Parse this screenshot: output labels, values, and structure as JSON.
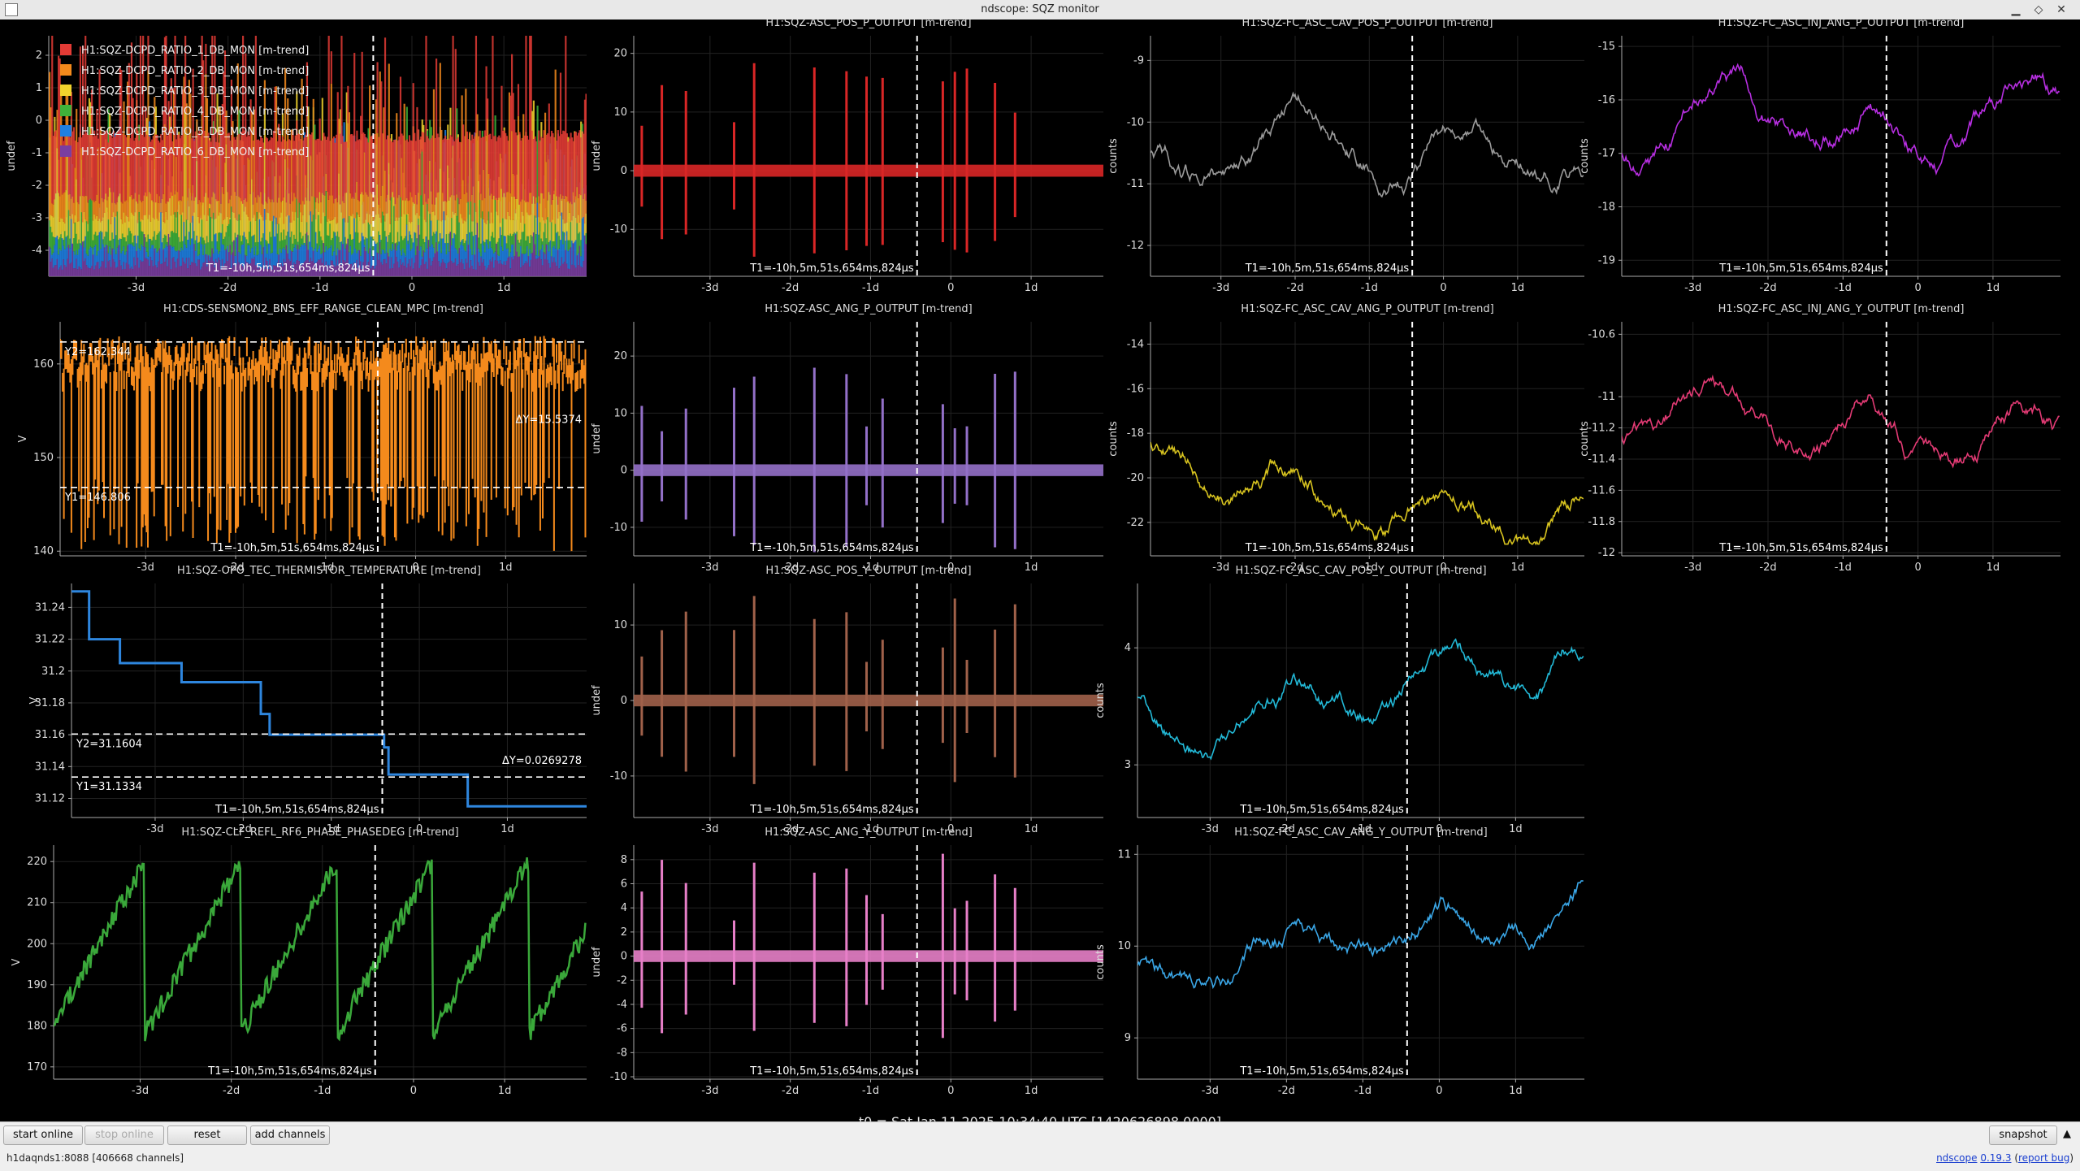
{
  "window": {
    "title": "ndscope: SQZ monitor"
  },
  "cursor_label": "T1=-10h,5m,51s,654ms,824μs",
  "x_tick_labels": [
    "-3d",
    "-2d",
    "-1d",
    "0",
    "1d"
  ],
  "t0_text": "t0 = Sat Jan 11 2025 10:34:40 UTC [1420626898.0000]",
  "buttons": {
    "start_online": "start online",
    "stop_online": "stop online",
    "reset": "reset",
    "add_channels": "add channels",
    "snapshot": "snapshot"
  },
  "status": {
    "server": "h1daqnds1:8088  [406668 channels]",
    "ndscope_link": "ndscope",
    "version_link": "0.19.3",
    "report_link": "report bug"
  },
  "plots": [
    {
      "id": "dcpd",
      "title": "",
      "ylabel": "undef",
      "ylim": [
        -4.8,
        2.6
      ],
      "yticks": [
        "2",
        "1",
        "0",
        "-1",
        "-2",
        "-3",
        "-4"
      ],
      "yticks_values": [
        2,
        1,
        0,
        -1,
        -2,
        -3,
        -4
      ],
      "legend": [
        "H1:SQZ-DCPD_RATIO_1_DB_MON [m-trend]",
        "H1:SQZ-DCPD_RATIO_2_DB_MON [m-trend]",
        "H1:SQZ-DCPD_RATIO_3_DB_MON [m-trend]",
        "H1:SQZ-DCPD_RATIO_4_DB_MON [m-trend]",
        "H1:SQZ-DCPD_RATIO_5_DB_MON [m-trend]",
        "H1:SQZ-DCPD_RATIO_6_DB_MON [m-trend]"
      ],
      "legend_colors": [
        "#e33b35",
        "#f48a1c",
        "#f1d32d",
        "#3fb23a",
        "#1f7fe0",
        "#7a3ea0"
      ],
      "color": "#f48a1c"
    },
    {
      "id": "pos_p",
      "title": "H1:SQZ-ASC_POS_P_OUTPUT [m-trend]",
      "ylabel": "undef",
      "ylim": [
        -18,
        23
      ],
      "yticks": [
        "20",
        "10",
        "0",
        "-10"
      ],
      "yticks_values": [
        20,
        10,
        0,
        -10
      ],
      "color": "#d92626"
    },
    {
      "id": "cav_pos_p",
      "title": "H1:SQZ-FC_ASC_CAV_POS_P_OUTPUT [m-trend]",
      "ylabel": "counts",
      "ylim": [
        -12.5,
        -8.6
      ],
      "yticks": [
        "-9",
        "-10",
        "-11",
        "-12"
      ],
      "yticks_values": [
        -9,
        -10,
        -11,
        -12
      ],
      "color": "#9a9a9a"
    },
    {
      "id": "inj_p",
      "title": "H1:SQZ-FC_ASC_INJ_ANG_P_OUTPUT [m-trend]",
      "ylabel": "counts",
      "ylim": [
        -19.3,
        -14.8
      ],
      "yticks": [
        "-15",
        "-16",
        "-17",
        "-18",
        "-19"
      ],
      "yticks_values": [
        -15,
        -16,
        -17,
        -18,
        -19
      ],
      "color": "#b62ee0"
    },
    {
      "id": "bns",
      "title": "H1:CDS-SENSMON2_BNS_EFF_RANGE_CLEAN_MPC [m-trend]",
      "ylabel": "V",
      "ylim": [
        139.5,
        164.5
      ],
      "yticks": [
        "160",
        "150",
        "140"
      ],
      "yticks_values": [
        160,
        150,
        140
      ],
      "color": "#f48a1c",
      "cursors": {
        "y2": "Y2=162.344",
        "y1": "Y1=146.806",
        "dy": "ΔY=15.5374",
        "y2v": 162.344,
        "y1v": 146.806
      }
    },
    {
      "id": "ang_p",
      "title": "H1:SQZ-ASC_ANG_P_OUTPUT [m-trend]",
      "ylabel": "undef",
      "ylim": [
        -15,
        26
      ],
      "yticks": [
        "20",
        "10",
        "0",
        "-10"
      ],
      "yticks_values": [
        20,
        10,
        0,
        -10
      ],
      "color": "#9370c8"
    },
    {
      "id": "cav_ang_p",
      "title": "H1:SQZ-FC_ASC_CAV_ANG_P_OUTPUT [m-trend]",
      "ylabel": "counts",
      "ylim": [
        -23.5,
        -13
      ],
      "yticks": [
        "-14",
        "-16",
        "-18",
        "-20",
        "-22"
      ],
      "yticks_values": [
        -14,
        -16,
        -18,
        -20,
        -22
      ],
      "color": "#d6c21f"
    },
    {
      "id": "inj_y",
      "title": "H1:SQZ-FC_ASC_INJ_ANG_Y_OUTPUT [m-trend]",
      "ylabel": "counts",
      "ylim": [
        -12.02,
        -10.52
      ],
      "yticks": [
        "-10.6",
        "-11",
        "-11.2",
        "-11.4",
        "-11.6",
        "-11.8",
        "-12"
      ],
      "yticks_values": [
        -10.6,
        -11,
        -11.2,
        -11.4,
        -11.6,
        -11.8,
        -12
      ],
      "color": "#e23a74"
    },
    {
      "id": "thermistor",
      "title": "H1:SQZ-OPO_TEC_THERMISTOR_TEMPERATURE [m-trend]",
      "ylabel": "V",
      "ylim": [
        31.108,
        31.255
      ],
      "yticks": [
        "31.24",
        "31.22",
        "31.2",
        "31.18",
        "31.16",
        "31.14",
        "31.12"
      ],
      "yticks_values": [
        31.24,
        31.22,
        31.2,
        31.18,
        31.16,
        31.14,
        31.12
      ],
      "color": "#2e86de",
      "cursors": {
        "y2": "Y2=31.1604",
        "y1": "Y1=31.1334",
        "dy": "ΔY=0.0269278",
        "y2v": 31.1604,
        "y1v": 31.1334
      }
    },
    {
      "id": "pos_y",
      "title": "H1:SQZ-ASC_POS_Y_OUTPUT [m-trend]",
      "ylabel": "undef",
      "ylim": [
        -15.5,
        15.5
      ],
      "yticks": [
        "10",
        "0",
        "-10"
      ],
      "yticks_values": [
        10,
        0,
        -10
      ],
      "color": "#a0614a"
    },
    {
      "id": "cav_pos_y",
      "title": "H1:SQZ-FC_ASC_CAV_POS_Y_OUTPUT [m-trend]",
      "ylabel": "counts",
      "ylim": [
        2.55,
        4.55
      ],
      "yticks": [
        "4",
        "3"
      ],
      "yticks_values": [
        4,
        3
      ],
      "color": "#22b8d6"
    },
    {
      "id": "phasedeg",
      "title": "H1:SQZ-CLF_REFL_RF6_PHASE_PHASEDEG [m-trend]",
      "ylabel": "V",
      "ylim": [
        167,
        224
      ],
      "yticks": [
        "220",
        "210",
        "200",
        "190",
        "180",
        "170"
      ],
      "yticks_values": [
        220,
        210,
        200,
        190,
        180,
        170
      ],
      "color": "#3aa83a"
    },
    {
      "id": "ang_y",
      "title": "H1:SQZ-ASC_ANG_Y_OUTPUT [m-trend]",
      "ylabel": "undef",
      "ylim": [
        -10.2,
        9.2
      ],
      "yticks": [
        "8",
        "6",
        "4",
        "2",
        "0",
        "-2",
        "-4",
        "-6",
        "-8",
        "-10"
      ],
      "yticks_values": [
        8,
        6,
        4,
        2,
        0,
        -2,
        -4,
        -6,
        -8,
        -10
      ],
      "color": "#e77fc8"
    },
    {
      "id": "cav_ang_y",
      "title": "H1:SQZ-FC_ASC_CAV_ANG_Y_OUTPUT [m-trend]",
      "ylabel": "counts",
      "ylim": [
        8.55,
        11.1
      ],
      "yticks": [
        "11",
        "10",
        "9"
      ],
      "yticks_values": [
        11,
        10,
        9
      ],
      "color": "#3aa6e6"
    }
  ]
}
